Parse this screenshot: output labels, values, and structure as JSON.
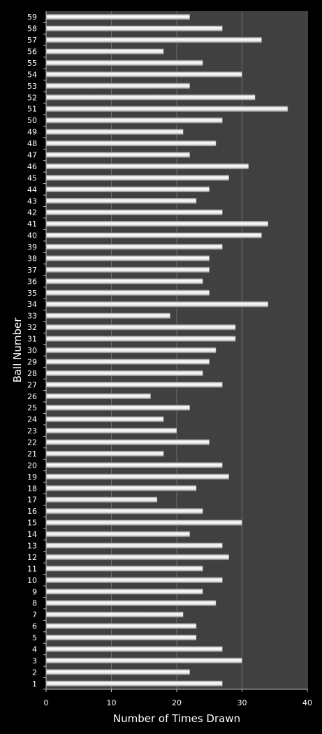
{
  "chart_data": {
    "type": "bar",
    "orientation": "horizontal",
    "title": "",
    "xlabel": "Number of Times Drawn",
    "ylabel": "Ball Number",
    "xlim": [
      0,
      40
    ],
    "x_ticks": [
      0,
      10,
      20,
      30,
      40
    ],
    "grid": "vertical",
    "legend": "none",
    "colors": {
      "background": "#000000",
      "plot_area": "#404040",
      "bar": "#f2f2f2",
      "text": "#ffffff",
      "gridline": "#6e6e6e"
    },
    "categories": [
      "1",
      "2",
      "3",
      "4",
      "5",
      "6",
      "7",
      "8",
      "9",
      "10",
      "11",
      "12",
      "13",
      "14",
      "15",
      "16",
      "17",
      "18",
      "19",
      "20",
      "21",
      "22",
      "23",
      "24",
      "25",
      "26",
      "27",
      "28",
      "29",
      "30",
      "31",
      "32",
      "33",
      "34",
      "35",
      "36",
      "37",
      "38",
      "39",
      "40",
      "41",
      "42",
      "43",
      "44",
      "45",
      "46",
      "47",
      "48",
      "49",
      "50",
      "51",
      "52",
      "53",
      "54",
      "55",
      "56",
      "57",
      "58",
      "59"
    ],
    "values": [
      27,
      22,
      30,
      27,
      23,
      23,
      21,
      26,
      24,
      27,
      24,
      28,
      27,
      22,
      30,
      24,
      17,
      23,
      28,
      27,
      18,
      25,
      20,
      18,
      22,
      16,
      27,
      24,
      25,
      26,
      29,
      29,
      19,
      34,
      25,
      24,
      25,
      25,
      27,
      33,
      34,
      27,
      23,
      25,
      28,
      31,
      22,
      26,
      21,
      27,
      37,
      32,
      22,
      30,
      24,
      18,
      33,
      27,
      22
    ]
  }
}
